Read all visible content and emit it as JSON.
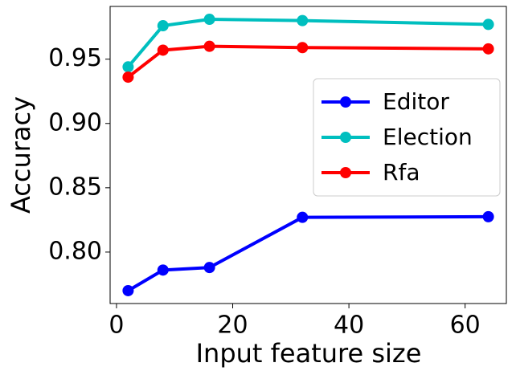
{
  "chart_data": {
    "type": "line",
    "x_label": "Input feature size",
    "y_label": "Accuracy",
    "x": [
      2,
      8,
      16,
      32,
      64
    ],
    "series": [
      {
        "name": "Editor",
        "color": "#0000ff",
        "values": [
          0.77,
          0.786,
          0.788,
          0.827,
          0.8275
        ]
      },
      {
        "name": "Election",
        "color": "#00bfbf",
        "values": [
          0.944,
          0.976,
          0.981,
          0.98,
          0.977
        ]
      },
      {
        "name": "Rfa",
        "color": "#ff0000",
        "values": [
          0.936,
          0.957,
          0.96,
          0.959,
          0.958
        ]
      }
    ],
    "xlim": [
      -1.1,
      67.1
    ],
    "xticks": [
      0,
      20,
      40,
      60
    ],
    "ylim": [
      0.76,
      0.991
    ],
    "yticks": [
      {
        "value": 0.8,
        "label": "0.80"
      },
      0.85,
      {
        "value": 0.9,
        "label": "0.90"
      },
      0.95
    ],
    "legend": "center right"
  }
}
